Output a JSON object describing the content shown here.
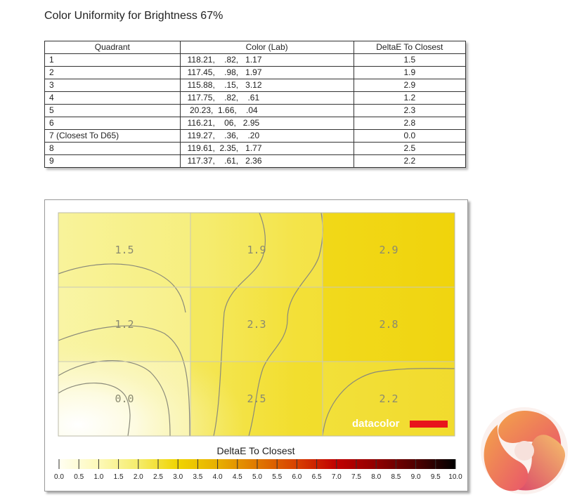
{
  "title": "Color Uniformity for Brightness 67%",
  "table": {
    "headers": [
      "Quadrant",
      "Color (Lab)",
      "DeltaE To Closest"
    ],
    "rows": [
      {
        "quadrant": "1",
        "lab": "118.21,    .82,   1.17",
        "delta": "1.5"
      },
      {
        "quadrant": "2",
        "lab": "117.45,    .98,   1.97",
        "delta": "1.9"
      },
      {
        "quadrant": "3",
        "lab": "115.88,    .15,   3.12",
        "delta": "2.9"
      },
      {
        "quadrant": "4",
        "lab": "117.75,    .82,    .61",
        "delta": "1.2"
      },
      {
        "quadrant": "5",
        "lab": " 20.23,  1.66,    .04",
        "delta": "2.3"
      },
      {
        "quadrant": "6",
        "lab": "116.21,    06,   2.95",
        "delta": "2.8"
      },
      {
        "quadrant": "7 (Closest To D65)",
        "lab": "119.27,    .36,    .20",
        "delta": "0.0"
      },
      {
        "quadrant": "8",
        "lab": "119.61,  2.35,   1.77",
        "delta": "2.5"
      },
      {
        "quadrant": "9",
        "lab": "117.37,    .61,   2.36",
        "delta": "2.2"
      }
    ]
  },
  "chart_data": {
    "type": "heatmap",
    "grid": [
      [
        1.5,
        1.9,
        2.9
      ],
      [
        1.2,
        2.3,
        2.8
      ],
      [
        0.0,
        2.5,
        2.2
      ]
    ],
    "labels": [
      [
        "1.5",
        "1.9",
        "2.9"
      ],
      [
        "1.2",
        "2.3",
        "2.8"
      ],
      [
        "0.0",
        "2.5",
        "2.2"
      ]
    ],
    "scale_title": "DeltaE To Closest",
    "scale_range": [
      0,
      10
    ],
    "scale_ticks": [
      "0.0",
      "0.5",
      "1.0",
      "1.5",
      "2.0",
      "2.5",
      "3.0",
      "3.5",
      "4.0",
      "4.5",
      "5.0",
      "5.5",
      "6.0",
      "6.5",
      "7.0",
      "7.5",
      "8.0",
      "8.5",
      "9.0",
      "9.5",
      "10.0"
    ],
    "scale_colors": [
      "#fffef2",
      "#fdf9b8",
      "#f5ec6a",
      "#f0d400",
      "#e8b000",
      "#e07800",
      "#d84000",
      "#c00000",
      "#900000",
      "#500000",
      "#000000"
    ],
    "watermark": "datacolor",
    "watermark_bar_color": "#e8141c",
    "gridlines": true
  }
}
